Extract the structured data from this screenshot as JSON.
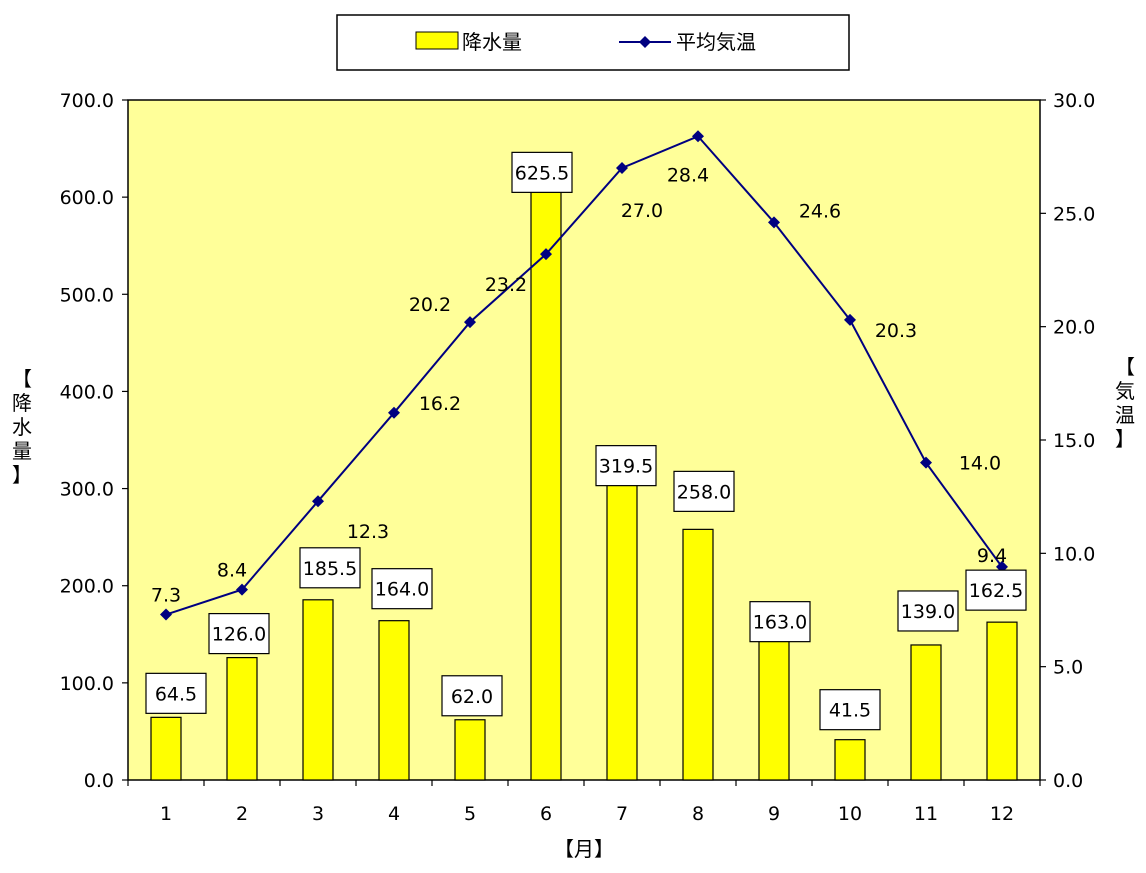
{
  "chart_data": {
    "type": "bar+line",
    "categories": [
      "1",
      "2",
      "3",
      "4",
      "5",
      "6",
      "7",
      "8",
      "9",
      "10",
      "11",
      "12"
    ],
    "series": [
      {
        "name": "降水量",
        "type": "bar",
        "axis": "left",
        "values": [
          64.5,
          126.0,
          185.5,
          164.0,
          62.0,
          625.5,
          319.5,
          258.0,
          163.0,
          41.5,
          139.0,
          162.5
        ],
        "labels": [
          "64.5",
          "126.0",
          "185.5",
          "164.0",
          "62.0",
          "625.5",
          "319.5",
          "258.0",
          "163.0",
          "41.5",
          "139.0",
          "162.5"
        ]
      },
      {
        "name": "平均気温",
        "type": "line",
        "axis": "right",
        "values": [
          7.3,
          8.4,
          12.3,
          16.2,
          20.2,
          23.2,
          27.0,
          28.4,
          24.6,
          20.3,
          14.0,
          9.4
        ],
        "labels": [
          "7.3",
          "8.4",
          "12.3",
          "16.2",
          "20.2",
          "23.2",
          "27.0",
          "28.4",
          "24.6",
          "20.3",
          "14.0",
          "9.4"
        ]
      }
    ],
    "xlabel": "【月】",
    "ylabel_left": "【降水量】",
    "ylabel_right": "【気温】",
    "ylim_left": [
      0,
      700
    ],
    "ylim_right": [
      0,
      30
    ],
    "yticks_left": [
      "0.0",
      "100.0",
      "200.0",
      "300.0",
      "400.0",
      "500.0",
      "600.0",
      "700.0"
    ],
    "yticks_right": [
      "0.0",
      "5.0",
      "10.0",
      "15.0",
      "20.0",
      "25.0",
      "30.0"
    ],
    "legend_position": "top-center",
    "grid": false,
    "colors": {
      "plot_bg": "#FFFF99",
      "bar_fill": "#FFFF00",
      "bar_stroke": "#000000",
      "line": "#000080",
      "marker": "#000080"
    }
  }
}
